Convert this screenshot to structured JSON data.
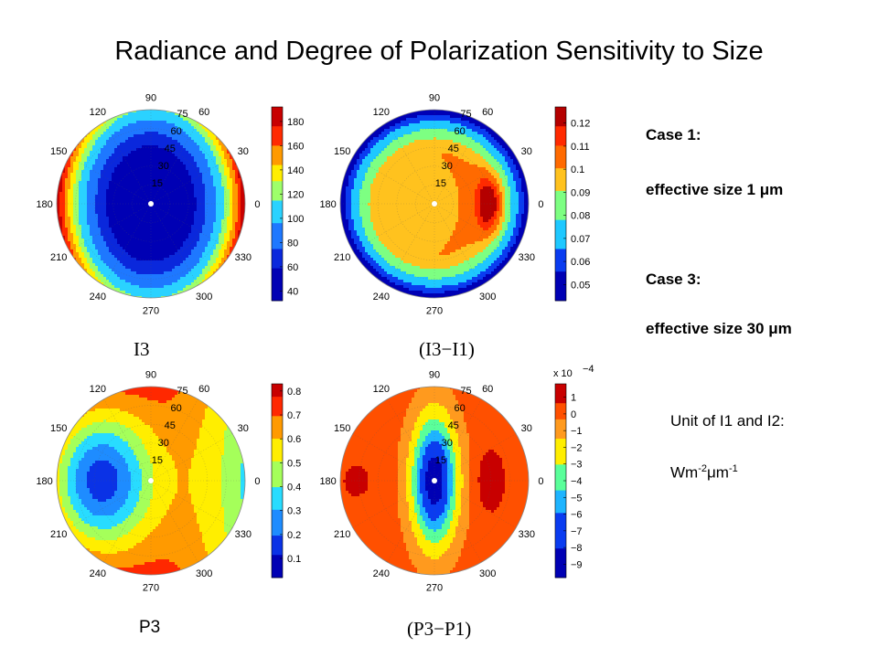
{
  "title": "Radiance and Degree of Polarization Sensitivity to Size",
  "polar_angle_labels": [
    "0",
    "30",
    "60",
    "90",
    "120",
    "150",
    "180",
    "210",
    "240",
    "270",
    "300",
    "330"
  ],
  "ring_labels": [
    "15",
    "30",
    "45",
    "60",
    "75"
  ],
  "side_text": {
    "case1": "Case 1:",
    "size1": "effective size 1 μm",
    "case3": "Case 3:",
    "size3": "effective size 30 μm",
    "unit_label": "Unit of I1 and I2:",
    "unit_value_base": "Wm",
    "unit_value_exp1": "-2",
    "unit_value_mid": "μm",
    "unit_value_exp2": "-1"
  },
  "chart_data": [
    {
      "type": "heatmap",
      "projection": "polar",
      "caption": "I3",
      "colorbar": {
        "ticks": [
          "180",
          "160",
          "140",
          "120",
          "100",
          "80",
          "60",
          "40"
        ],
        "range": [
          32,
          192
        ],
        "multiplier": ""
      },
      "contour_levels": [
        60,
        75,
        95,
        115,
        130,
        145,
        160,
        175
      ],
      "colors": [
        "#0000b4",
        "#0a28dc",
        "#1e78ff",
        "#2ad2ff",
        "#9eff6a",
        "#ffee00",
        "#ff9a00",
        "#ff2a00",
        "#c80000"
      ]
    },
    {
      "type": "heatmap",
      "projection": "polar",
      "caption": "(I3−I1)",
      "colorbar": {
        "ticks": [
          "0.12",
          "0.11",
          "0.1",
          "0.09",
          "0.08",
          "0.07",
          "0.06",
          "0.05"
        ],
        "range": [
          0.043,
          0.127
        ],
        "multiplier": ""
      },
      "contour_levels": [
        0.055,
        0.065,
        0.078,
        0.09,
        0.1,
        0.11,
        0.118
      ],
      "colors": [
        "#0000b4",
        "#0a3cf0",
        "#1ec8ff",
        "#7dff82",
        "#ffc21e",
        "#ff6a00",
        "#ff2a00",
        "#b40000"
      ]
    },
    {
      "type": "heatmap",
      "projection": "polar",
      "caption": "P3",
      "colorbar": {
        "ticks": [
          "0.8",
          "0.7",
          "0.6",
          "0.5",
          "0.4",
          "0.3",
          "0.2",
          "0.1"
        ],
        "range": [
          0.02,
          0.83
        ],
        "multiplier": ""
      },
      "contour_levels": [
        0.12,
        0.2,
        0.3,
        0.4,
        0.5,
        0.6,
        0.7,
        0.78
      ],
      "colors": [
        "#0000b4",
        "#0a32e6",
        "#1e8cff",
        "#28dcff",
        "#a5ff5a",
        "#ffee00",
        "#ff9a00",
        "#ff2800",
        "#c80000"
      ]
    },
    {
      "type": "heatmap",
      "projection": "polar",
      "caption": "(P3−P1)",
      "colorbar": {
        "ticks": [
          "1",
          "0",
          "−1",
          "−2",
          "−3",
          "−4",
          "−5",
          "−6",
          "−7",
          "−8",
          "−9"
        ],
        "range": [
          -9.8,
          1.8
        ],
        "multiplier": "x 10",
        "multiplier_exp": "−4"
      },
      "contour_levels": [
        -8,
        -6,
        -4.5,
        -3,
        -1.5,
        -0.3,
        0.7
      ],
      "colors": [
        "#0000b4",
        "#0a3cf0",
        "#1eb4ff",
        "#5aff9a",
        "#ffee00",
        "#ff9a1e",
        "#ff5000",
        "#c80000"
      ]
    }
  ]
}
